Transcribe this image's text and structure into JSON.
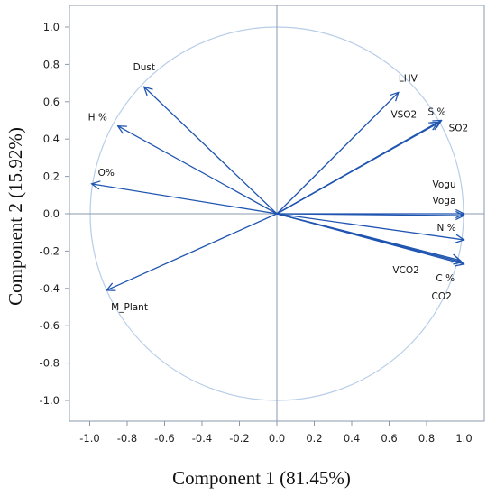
{
  "chart_data": {
    "type": "scatter",
    "subtype": "pca-loading-biplot",
    "title": "",
    "xlabel": "Component 1 (81.45%)",
    "ylabel": "Component 2 (15.92%)",
    "xlim": [
      -1.0,
      1.0
    ],
    "ylim": [
      -1.0,
      1.0
    ],
    "x_ticks": [
      "-1.0",
      "-0.8",
      "-0.6",
      "-0.4",
      "-0.2",
      "0.0",
      "0.2",
      "0.4",
      "0.6",
      "0.8",
      "1.0"
    ],
    "y_ticks": [
      "1.0",
      "0.8",
      "0.6",
      "0.4",
      "0.2",
      "0.0",
      "-0.2",
      "-0.4",
      "-0.6",
      "-0.8",
      "-1.0"
    ],
    "unit_circle": true,
    "reference_lines": {
      "x": 0,
      "y": 0
    },
    "grid": false,
    "legend": "none",
    "colors": {
      "vector": "#1f55b0",
      "circle": "#b7cde8",
      "reference": "#8a9aae",
      "frame": "#8a9aae"
    },
    "vectors": [
      {
        "name": "Dust",
        "x": -0.71,
        "y": 0.68
      },
      {
        "name": "H %",
        "x": -0.85,
        "y": 0.47
      },
      {
        "name": "O%",
        "x": -0.99,
        "y": 0.16
      },
      {
        "name": "M_Plant",
        "x": -0.91,
        "y": -0.41
      },
      {
        "name": "LHV",
        "x": 0.65,
        "y": 0.65
      },
      {
        "name": "VSO2",
        "x": 0.86,
        "y": 0.49
      },
      {
        "name": "S %",
        "x": 0.87,
        "y": 0.49
      },
      {
        "name": "SO2",
        "x": 0.88,
        "y": 0.5
      },
      {
        "name": "Vogu",
        "x": 1.0,
        "y": 0.0
      },
      {
        "name": "Voga",
        "x": 1.0,
        "y": -0.01
      },
      {
        "name": "N %",
        "x": 1.0,
        "y": -0.14
      },
      {
        "name": "VCO2",
        "x": 0.98,
        "y": -0.25
      },
      {
        "name": "C %",
        "x": 0.99,
        "y": -0.26
      },
      {
        "name": "CO2",
        "x": 1.0,
        "y": -0.27
      }
    ]
  }
}
